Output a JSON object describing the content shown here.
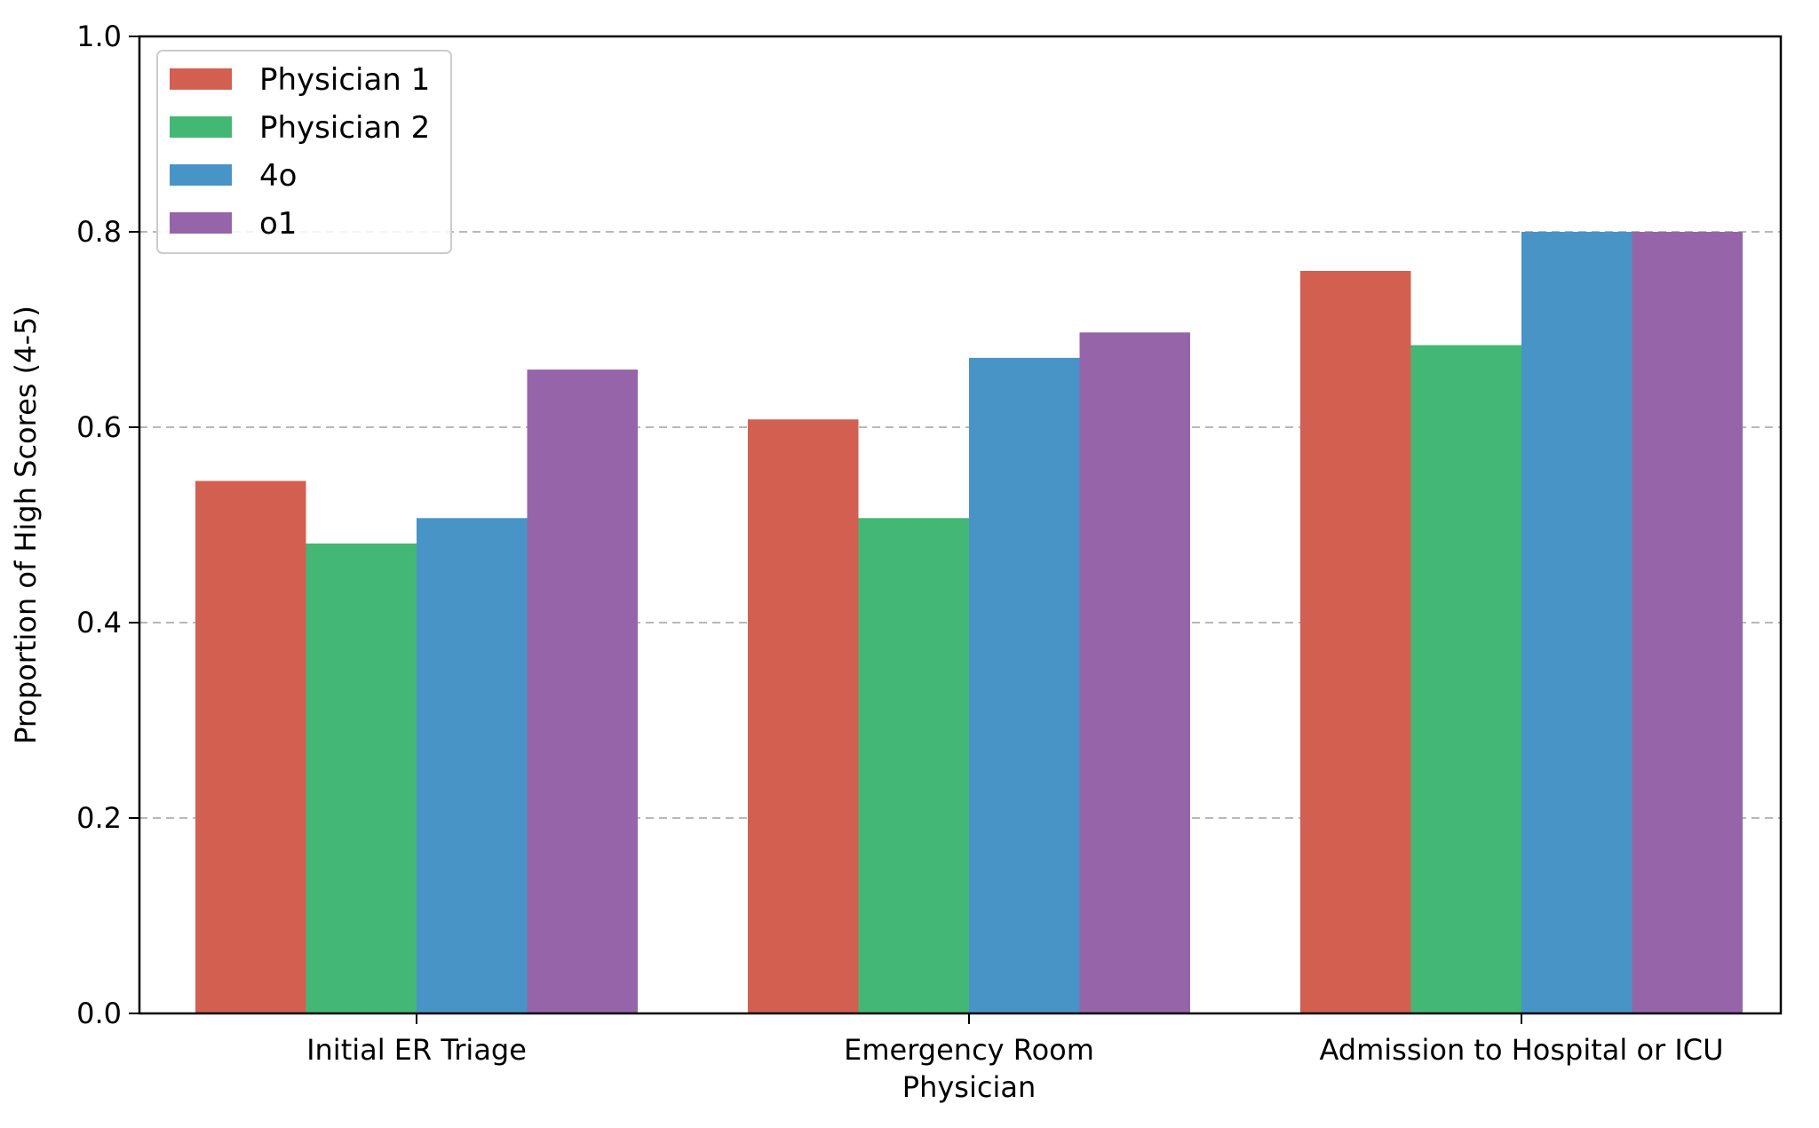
{
  "chart_data": {
    "type": "bar",
    "title": "",
    "xlabel": "",
    "ylabel": "Proportion of High Scores (4-5)",
    "ylim": [
      0,
      1.0
    ],
    "yticks": [
      "0.0",
      "0.2",
      "0.4",
      "0.6",
      "0.8",
      "1.0"
    ],
    "categories": [
      [
        "Initial ER Triage"
      ],
      [
        "Emergency Room",
        "Physician"
      ],
      [
        "Admission to Hospital or ICU"
      ]
    ],
    "series": [
      {
        "name": "Physician 1",
        "color": "#d35f51",
        "values": [
          0.545,
          0.608,
          0.76
        ]
      },
      {
        "name": "Physician 2",
        "color": "#43b875",
        "values": [
          0.481,
          0.507,
          0.684
        ]
      },
      {
        "name": "4o",
        "color": "#4894c7",
        "values": [
          0.507,
          0.671,
          0.8
        ]
      },
      {
        "name": "o1",
        "color": "#9665a9",
        "values": [
          0.659,
          0.697,
          0.8
        ]
      }
    ],
    "grid": "y-dashed",
    "legend_position": "top-left"
  }
}
